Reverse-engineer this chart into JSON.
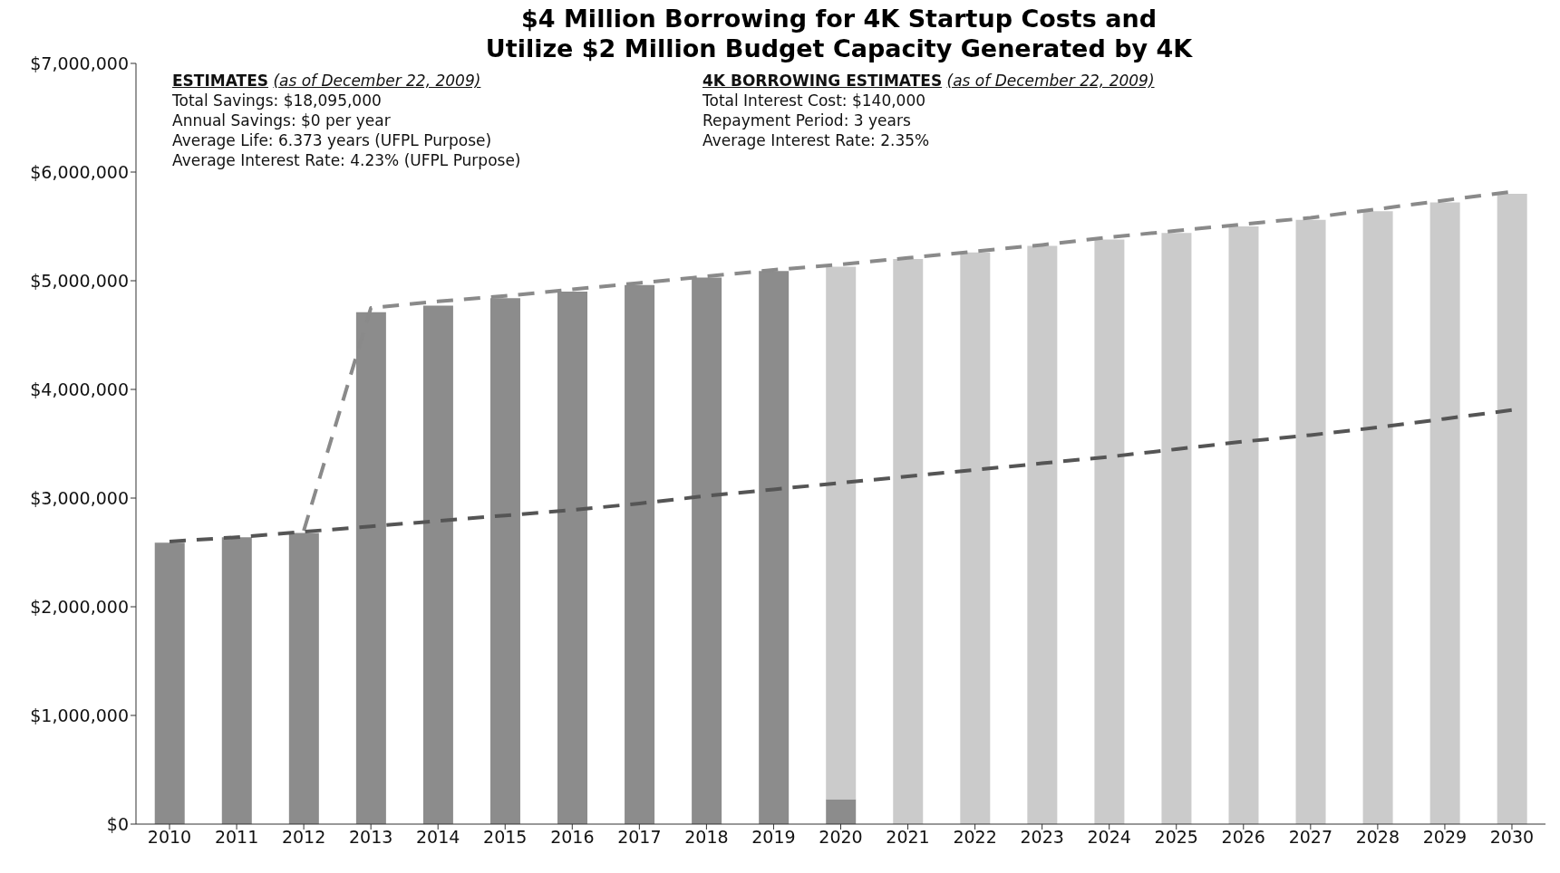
{
  "chart_data": {
    "type": "bar",
    "title": "$4 Million Borrowing for 4K Startup Costs and\nUtilize $2 Million Budget Capacity Generated by 4K",
    "categories": [
      "2010",
      "2011",
      "2012",
      "2013",
      "2014",
      "2015",
      "2016",
      "2017",
      "2018",
      "2019",
      "2020",
      "2021",
      "2022",
      "2023",
      "2024",
      "2025",
      "2026",
      "2027",
      "2028",
      "2029",
      "2030"
    ],
    "stacked": true,
    "grid": false,
    "legend": false,
    "marker": "none",
    "series": [
      {
        "color": "#8c8c8c",
        "values": [
          2590000,
          2640000,
          2680000,
          4710000,
          4770000,
          4840000,
          4900000,
          4960000,
          5030000,
          5090000,
          230000,
          null,
          null,
          null,
          null,
          null,
          null,
          null,
          null,
          null,
          null
        ]
      },
      {
        "color": "#cbcbcb",
        "values": [
          null,
          null,
          null,
          null,
          null,
          null,
          null,
          null,
          null,
          null,
          4900000,
          5200000,
          5260000,
          5320000,
          5380000,
          5440000,
          5500000,
          5560000,
          5640000,
          5720000,
          5800000
        ]
      },
      {
        "type": "line",
        "color": "#8a8a8a",
        "line_style": "dashed",
        "values": [
          null,
          null,
          2700000,
          4750000,
          4810000,
          4860000,
          4920000,
          4980000,
          5040000,
          5100000,
          5150000,
          5210000,
          5270000,
          5330000,
          5400000,
          5460000,
          5520000,
          5580000,
          5660000,
          5740000,
          5820000
        ]
      },
      {
        "type": "line",
        "color": "#555555",
        "line_style": "dashed",
        "values": [
          2600000,
          2640000,
          2690000,
          2740000,
          2790000,
          2840000,
          2890000,
          2950000,
          3020000,
          3080000,
          3140000,
          3200000,
          3260000,
          3320000,
          3380000,
          3450000,
          3520000,
          3580000,
          3650000,
          3730000,
          3810000
        ]
      }
    ],
    "ylim": [
      0,
      7000000
    ],
    "yticks": [
      {
        "value": 0,
        "label": "$0"
      },
      {
        "value": 1000000,
        "label": "$1,000,000"
      },
      {
        "value": 2000000,
        "label": "$2,000,000"
      },
      {
        "value": 3000000,
        "label": "$3,000,000"
      },
      {
        "value": 4000000,
        "label": "$4,000,000"
      },
      {
        "value": 5000000,
        "label": "$5,000,000"
      },
      {
        "value": 6000000,
        "label": "$6,000,000"
      },
      {
        "value": 7000000,
        "label": "$7,000,000"
      }
    ],
    "annotations": [
      "ESTIMATES",
      "(as of December 22, 2009)",
      "Total Savings: $18,095,000",
      "Annual Savings: $0 per year",
      "Average Life: 6.373 years (UFPL Purpose)",
      "Average Interest Rate: 4.23% (UFPL Purpose)",
      "4K BORROWING ESTIMATES",
      "(as of December 22, 2009)",
      "Total Interest Cost: $140,000",
      "Repayment Period: 3 years",
      "Average Interest Rate: 2.35%"
    ]
  }
}
